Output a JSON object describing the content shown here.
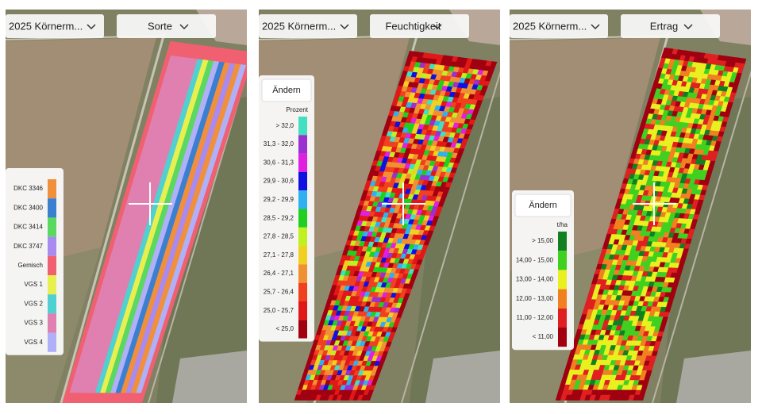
{
  "panels": [
    {
      "season": "2025 Körnerm...",
      "layer": "Sorte",
      "legend": {
        "items": [
          {
            "label": "DKC 3346",
            "color": "#f0903c"
          },
          {
            "label": "DKC 3400",
            "color": "#3a7fd0"
          },
          {
            "label": "DKC 3414",
            "color": "#5ad860"
          },
          {
            "label": "DKC 3747",
            "color": "#a88af0"
          },
          {
            "label": "Gemisch",
            "color": "#f06070"
          },
          {
            "label": "VGS 1",
            "color": "#e8f050"
          },
          {
            "label": "VGS 2",
            "color": "#50d0d0"
          },
          {
            "label": "VGS 3",
            "color": "#e080b0"
          },
          {
            "label": "VGS 4",
            "color": "#b0b0f8"
          }
        ]
      }
    },
    {
      "season": "2025 Körnerm...",
      "layer": "Feuchtigkeit",
      "legend": {
        "button": "Ändern",
        "unit": "Prozent",
        "items": [
          {
            "label": "> 32,0",
            "color": "#40e0c0"
          },
          {
            "label": "31,3 - 32,0",
            "color": "#9b30d0"
          },
          {
            "label": "30,6 - 31,3",
            "color": "#e020e0"
          },
          {
            "label": "29,9 - 30,6",
            "color": "#1010e0"
          },
          {
            "label": "29,2 - 29,9",
            "color": "#30b0f0"
          },
          {
            "label": "28,5 - 29,2",
            "color": "#20d020"
          },
          {
            "label": "27,8 - 28,5",
            "color": "#c0f020"
          },
          {
            "label": "27,1 - 27,8",
            "color": "#f0d020"
          },
          {
            "label": "26,4 - 27,1",
            "color": "#f09030"
          },
          {
            "label": "25,7 - 26,4",
            "color": "#f04020"
          },
          {
            "label": "25,0 - 25,7",
            "color": "#e01818"
          },
          {
            "label": "< 25,0",
            "color": "#a00010"
          }
        ]
      }
    },
    {
      "season": "2025 Körnerm...",
      "layer": "Ertrag",
      "legend": {
        "button": "Ändern",
        "unit": "t/ha",
        "items": [
          {
            "label": "> 15,00",
            "color": "#108020"
          },
          {
            "label": "14,00 - 15,00",
            "color": "#40d020"
          },
          {
            "label": "13,00 - 14,00",
            "color": "#e8f020"
          },
          {
            "label": "12,00 - 13,00",
            "color": "#f08020"
          },
          {
            "label": "11,00 - 12,00",
            "color": "#e02020"
          },
          {
            "label": "< 11,00",
            "color": "#a00010"
          }
        ]
      }
    }
  ]
}
